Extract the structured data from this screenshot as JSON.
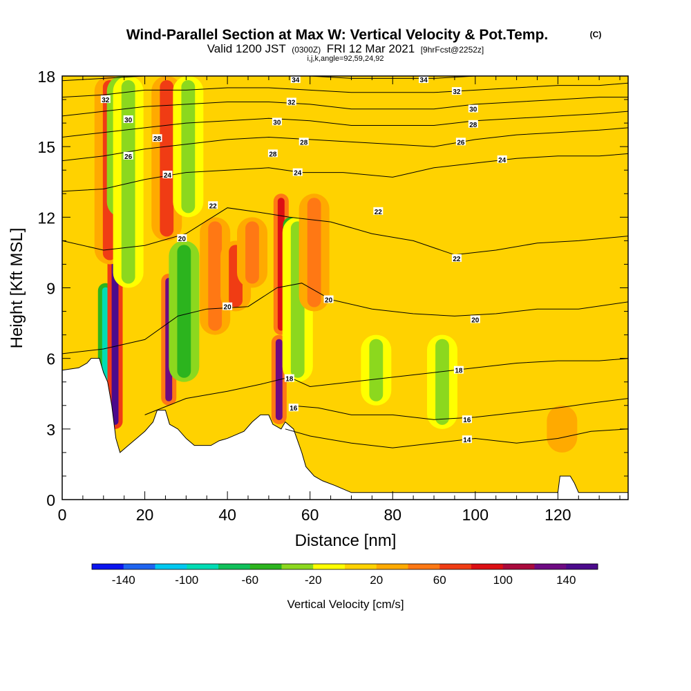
{
  "header": {
    "title": "Wind-Parallel Section at Max W: Vertical Velocity & Pot.Temp.",
    "copyright": "(C)",
    "valid_prefix": "Valid 1200 JST",
    "valid_utc": "(0300Z)",
    "valid_date": "FRI 12 Mar 2021",
    "forecast": "[9hrFcst@2252z]",
    "grid_info": "i,j,k,angle=92,59,24,92"
  },
  "chart_data": {
    "type": "heatmap",
    "xlabel": "Distance [nm]",
    "ylabel": "Height [Kft MSL]",
    "xlim": [
      0,
      137
    ],
    "ylim": [
      0,
      18
    ],
    "x_ticks": [
      0,
      20,
      40,
      60,
      80,
      100,
      120
    ],
    "y_ticks": [
      0,
      3,
      6,
      9,
      12,
      15,
      18
    ],
    "x_tick_labels": [
      "0",
      "20",
      "40",
      "60",
      "80",
      "100",
      "120"
    ],
    "y_tick_labels": [
      "0",
      "3",
      "6",
      "9",
      "12",
      "15",
      "18"
    ],
    "grid": false,
    "colorbar": {
      "label": "Vertical Velocity [cm/s]",
      "levels": [
        -160,
        -140,
        -120,
        -100,
        -80,
        -60,
        -40,
        -20,
        0,
        20,
        40,
        60,
        80,
        100,
        120,
        140,
        160
      ],
      "colors": [
        "#0a14ee",
        "#1e64f0",
        "#00c8f0",
        "#00dcb4",
        "#10c05a",
        "#2cb41e",
        "#8cd81e",
        "#ffff00",
        "#ffd200",
        "#ffaa00",
        "#ff7814",
        "#f03c14",
        "#dc0f14",
        "#aa0a3c",
        "#6e0a82",
        "#4b0a8c"
      ],
      "tick_values": [
        -140,
        -100,
        -60,
        -20,
        20,
        60,
        100,
        140
      ],
      "tick_labels": [
        "-140",
        "-100",
        "-60",
        "-20",
        "20",
        "60",
        "100",
        "140"
      ]
    },
    "background_w": 10,
    "vertical_velocity_features": [
      {
        "x": 10.5,
        "y0": 3.2,
        "y1": 9.2,
        "w": -95
      },
      {
        "x": 12.8,
        "y0": 3.0,
        "y1": 10.3,
        "w": 140
      },
      {
        "x": 11.5,
        "y0": 10.0,
        "y1": 18.0,
        "w": 75
      },
      {
        "x": 14.5,
        "y0": 12.0,
        "y1": 18.0,
        "w": -80
      },
      {
        "x": 16.0,
        "y0": 9.0,
        "y1": 18.0,
        "w": -25
      },
      {
        "x": 25.8,
        "y0": 4.0,
        "y1": 9.6,
        "w": 120
      },
      {
        "x": 25.3,
        "y0": 11.0,
        "y1": 18.0,
        "w": 60
      },
      {
        "x": 29.5,
        "y0": 5.0,
        "y1": 11.0,
        "w": -45
      },
      {
        "x": 30.5,
        "y0": 12.0,
        "y1": 18.0,
        "w": -25
      },
      {
        "x": 37.0,
        "y0": 7.0,
        "y1": 12.0,
        "w": 45
      },
      {
        "x": 42.0,
        "y0": 8.0,
        "y1": 11.0,
        "w": 60
      },
      {
        "x": 46.0,
        "y0": 9.0,
        "y1": 12.0,
        "w": 40
      },
      {
        "x": 52.5,
        "y0": 3.2,
        "y1": 7.0,
        "w": 120
      },
      {
        "x": 53.0,
        "y0": 7.0,
        "y1": 13.0,
        "w": 95
      },
      {
        "x": 55.3,
        "y0": 7.0,
        "y1": 12.0,
        "w": -105
      },
      {
        "x": 57.0,
        "y0": 5.0,
        "y1": 12.0,
        "w": -35
      },
      {
        "x": 61.0,
        "y0": 8.0,
        "y1": 13.0,
        "w": 40
      },
      {
        "x": 76.0,
        "y0": 4.0,
        "y1": 7.0,
        "w": -30
      },
      {
        "x": 92.0,
        "y0": 3.0,
        "y1": 7.0,
        "w": -22
      },
      {
        "x": 121.0,
        "y0": 2.0,
        "y1": 4.0,
        "w": 30
      }
    ],
    "terrain": [
      {
        "x": 0,
        "h": 5.5
      },
      {
        "x": 4,
        "h": 5.6
      },
      {
        "x": 6,
        "h": 5.8
      },
      {
        "x": 7,
        "h": 6.0
      },
      {
        "x": 9,
        "h": 6.0
      },
      {
        "x": 10,
        "h": 5.4
      },
      {
        "x": 11,
        "h": 5.0
      },
      {
        "x": 12,
        "h": 4.0
      },
      {
        "x": 13,
        "h": 2.6
      },
      {
        "x": 14,
        "h": 2.0
      },
      {
        "x": 16,
        "h": 2.3
      },
      {
        "x": 18,
        "h": 2.6
      },
      {
        "x": 20,
        "h": 2.9
      },
      {
        "x": 22,
        "h": 3.3
      },
      {
        "x": 23,
        "h": 3.8
      },
      {
        "x": 25,
        "h": 3.8
      },
      {
        "x": 26,
        "h": 3.2
      },
      {
        "x": 28,
        "h": 3.0
      },
      {
        "x": 30,
        "h": 2.6
      },
      {
        "x": 32,
        "h": 2.3
      },
      {
        "x": 36,
        "h": 2.3
      },
      {
        "x": 38,
        "h": 2.5
      },
      {
        "x": 40,
        "h": 2.6
      },
      {
        "x": 44,
        "h": 2.9
      },
      {
        "x": 46,
        "h": 3.3
      },
      {
        "x": 48,
        "h": 3.6
      },
      {
        "x": 50,
        "h": 3.6
      },
      {
        "x": 51,
        "h": 3.2
      },
      {
        "x": 53,
        "h": 3.0
      },
      {
        "x": 54,
        "h": 3.3
      },
      {
        "x": 56,
        "h": 3.0
      },
      {
        "x": 58,
        "h": 2.0
      },
      {
        "x": 59,
        "h": 1.4
      },
      {
        "x": 61,
        "h": 1.0
      },
      {
        "x": 63,
        "h": 0.8
      },
      {
        "x": 66,
        "h": 0.6
      },
      {
        "x": 70,
        "h": 0.3
      },
      {
        "x": 80,
        "h": 0.3
      },
      {
        "x": 100,
        "h": 0.3
      },
      {
        "x": 120,
        "h": 0.3
      },
      {
        "x": 120.5,
        "h": 1.0
      },
      {
        "x": 123,
        "h": 1.0
      },
      {
        "x": 124,
        "h": 0.7
      },
      {
        "x": 125,
        "h": 0.3
      },
      {
        "x": 137,
        "h": 0.3
      }
    ],
    "isentropes": [
      {
        "theta": 14,
        "points": [
          [
            54,
            3.0
          ],
          [
            60,
            2.7
          ],
          [
            70,
            2.4
          ],
          [
            80,
            2.2
          ],
          [
            90,
            2.4
          ],
          [
            100,
            2.6
          ],
          [
            110,
            2.4
          ],
          [
            120,
            2.6
          ],
          [
            128,
            2.9
          ],
          [
            137,
            3.0
          ]
        ]
      },
      {
        "theta": 16,
        "points": [
          [
            55,
            4.0
          ],
          [
            62,
            3.9
          ],
          [
            70,
            3.6
          ],
          [
            80,
            3.6
          ],
          [
            90,
            3.4
          ],
          [
            100,
            3.5
          ],
          [
            110,
            3.7
          ],
          [
            120,
            3.9
          ],
          [
            128,
            4.1
          ],
          [
            137,
            4.3
          ]
        ]
      },
      {
        "theta": 18,
        "points": [
          [
            20,
            3.6
          ],
          [
            30,
            4.3
          ],
          [
            40,
            4.6
          ],
          [
            48,
            4.9
          ],
          [
            55,
            5.2
          ],
          [
            60,
            4.8
          ],
          [
            70,
            5.0
          ],
          [
            80,
            5.2
          ],
          [
            90,
            5.4
          ],
          [
            100,
            5.6
          ],
          [
            110,
            5.8
          ],
          [
            120,
            5.9
          ],
          [
            130,
            5.9
          ],
          [
            137,
            6.0
          ]
        ]
      },
      {
        "theta": 20,
        "points": [
          [
            0,
            6.2
          ],
          [
            10,
            6.4
          ],
          [
            20,
            6.8
          ],
          [
            28,
            7.8
          ],
          [
            35,
            8.1
          ],
          [
            45,
            8.2
          ],
          [
            52,
            9.0
          ],
          [
            58,
            9.2
          ],
          [
            65,
            8.5
          ],
          [
            75,
            8.1
          ],
          [
            85,
            7.9
          ],
          [
            95,
            7.8
          ],
          [
            105,
            7.9
          ],
          [
            115,
            8.1
          ],
          [
            125,
            8.1
          ],
          [
            137,
            8.4
          ]
        ]
      },
      {
        "theta": 22,
        "points": [
          [
            0,
            11.0
          ],
          [
            10,
            10.6
          ],
          [
            20,
            10.8
          ],
          [
            30,
            11.3
          ],
          [
            40,
            12.4
          ],
          [
            48,
            12.2
          ],
          [
            55,
            12.0
          ],
          [
            65,
            11.8
          ],
          [
            75,
            11.3
          ],
          [
            85,
            11.0
          ],
          [
            95,
            10.4
          ],
          [
            105,
            10.6
          ],
          [
            115,
            10.9
          ],
          [
            125,
            11.0
          ],
          [
            137,
            11.2
          ]
        ]
      },
      {
        "theta": 24,
        "points": [
          [
            0,
            13.1
          ],
          [
            10,
            13.2
          ],
          [
            20,
            13.6
          ],
          [
            30,
            13.9
          ],
          [
            40,
            14.0
          ],
          [
            50,
            14.1
          ],
          [
            58,
            13.9
          ],
          [
            68,
            13.9
          ],
          [
            80,
            13.7
          ],
          [
            90,
            14.1
          ],
          [
            100,
            14.3
          ],
          [
            110,
            14.5
          ],
          [
            120,
            14.6
          ],
          [
            130,
            14.6
          ],
          [
            137,
            14.7
          ]
        ]
      },
      {
        "theta": 26,
        "points": [
          [
            0,
            14.4
          ],
          [
            10,
            14.6
          ],
          [
            20,
            14.9
          ],
          [
            30,
            15.1
          ],
          [
            40,
            15.3
          ],
          [
            50,
            15.4
          ],
          [
            60,
            15.3
          ],
          [
            70,
            15.2
          ],
          [
            80,
            15.1
          ],
          [
            90,
            15.0
          ],
          [
            100,
            15.3
          ],
          [
            110,
            15.5
          ],
          [
            120,
            15.6
          ],
          [
            130,
            15.7
          ],
          [
            137,
            15.8
          ]
        ]
      },
      {
        "theta": 28,
        "points": [
          [
            0,
            15.4
          ],
          [
            10,
            15.6
          ],
          [
            20,
            15.8
          ],
          [
            30,
            16.0
          ],
          [
            40,
            16.1
          ],
          [
            50,
            16.2
          ],
          [
            60,
            16.1
          ],
          [
            70,
            15.9
          ],
          [
            80,
            15.9
          ],
          [
            90,
            15.9
          ],
          [
            100,
            16.1
          ],
          [
            110,
            16.2
          ],
          [
            120,
            16.3
          ],
          [
            130,
            16.4
          ],
          [
            137,
            16.5
          ]
        ]
      },
      {
        "theta": 30,
        "points": [
          [
            0,
            16.3
          ],
          [
            10,
            16.5
          ],
          [
            20,
            16.7
          ],
          [
            30,
            16.8
          ],
          [
            40,
            16.9
          ],
          [
            50,
            16.9
          ],
          [
            60,
            16.8
          ],
          [
            70,
            16.6
          ],
          [
            80,
            16.6
          ],
          [
            90,
            16.6
          ],
          [
            100,
            16.8
          ],
          [
            110,
            16.9
          ],
          [
            120,
            17.0
          ],
          [
            130,
            17.1
          ],
          [
            137,
            17.1
          ]
        ]
      },
      {
        "theta": 32,
        "points": [
          [
            0,
            17.1
          ],
          [
            10,
            17.2
          ],
          [
            20,
            17.4
          ],
          [
            30,
            17.4
          ],
          [
            40,
            17.5
          ],
          [
            50,
            17.5
          ],
          [
            60,
            17.4
          ],
          [
            70,
            17.3
          ],
          [
            80,
            17.3
          ],
          [
            90,
            17.3
          ],
          [
            100,
            17.4
          ],
          [
            110,
            17.5
          ],
          [
            120,
            17.6
          ],
          [
            130,
            17.6
          ],
          [
            137,
            17.7
          ]
        ]
      },
      {
        "theta": 34,
        "points": [
          [
            0,
            17.8
          ],
          [
            10,
            17.9
          ],
          [
            20,
            18.0
          ],
          [
            60,
            18.0
          ],
          [
            70,
            17.9
          ],
          [
            80,
            17.9
          ],
          [
            90,
            17.9
          ],
          [
            100,
            18.0
          ],
          [
            137,
            18.0
          ]
        ]
      }
    ],
    "contour_labels": [
      {
        "text": "34",
        "x": 56.5,
        "y": 17.85
      },
      {
        "text": "34",
        "x": 87.5,
        "y": 17.85
      },
      {
        "text": "32",
        "x": 10.5,
        "y": 17.0
      },
      {
        "text": "32",
        "x": 55.5,
        "y": 16.9
      },
      {
        "text": "32",
        "x": 95.5,
        "y": 17.35
      },
      {
        "text": "30",
        "x": 16.0,
        "y": 16.15
      },
      {
        "text": "30",
        "x": 52.0,
        "y": 16.05
      },
      {
        "text": "30",
        "x": 99.5,
        "y": 16.6
      },
      {
        "text": "28",
        "x": 23.0,
        "y": 15.35
      },
      {
        "text": "28",
        "x": 58.5,
        "y": 15.2
      },
      {
        "text": "28",
        "x": 99.5,
        "y": 15.95
      },
      {
        "text": "28",
        "x": 51.0,
        "y": 14.7
      },
      {
        "text": "26",
        "x": 16.0,
        "y": 14.6
      },
      {
        "text": "26",
        "x": 96.5,
        "y": 15.2
      },
      {
        "text": "24",
        "x": 25.5,
        "y": 13.8
      },
      {
        "text": "24",
        "x": 57.0,
        "y": 13.9
      },
      {
        "text": "24",
        "x": 106.5,
        "y": 14.45
      },
      {
        "text": "22",
        "x": 36.5,
        "y": 12.5
      },
      {
        "text": "22",
        "x": 76.5,
        "y": 12.25
      },
      {
        "text": "22",
        "x": 95.5,
        "y": 10.25
      },
      {
        "text": "20",
        "x": 29.0,
        "y": 11.1
      },
      {
        "text": "20",
        "x": 40.0,
        "y": 8.2
      },
      {
        "text": "20",
        "x": 64.5,
        "y": 8.5
      },
      {
        "text": "20",
        "x": 100.0,
        "y": 7.65
      },
      {
        "text": "18",
        "x": 55.0,
        "y": 5.15
      },
      {
        "text": "18",
        "x": 96.0,
        "y": 5.5
      },
      {
        "text": "16",
        "x": 56.0,
        "y": 3.9
      },
      {
        "text": "16",
        "x": 98.0,
        "y": 3.4
      },
      {
        "text": "14",
        "x": 98.0,
        "y": 2.55
      }
    ]
  }
}
